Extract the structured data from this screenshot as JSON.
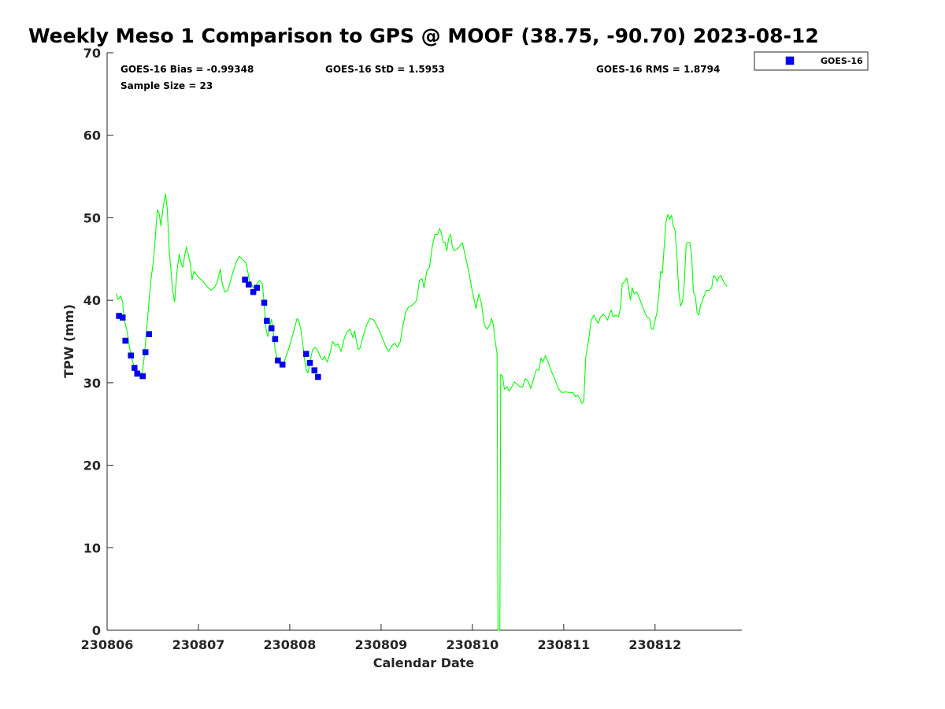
{
  "chart_data": {
    "type": "line",
    "title": "Weekly Meso 1 Comparison to GPS @ MOOF (38.75, -90.70) 2023-08-12",
    "xlabel": "Calendar Date",
    "ylabel": "TPW (mm)",
    "xlim": [
      0,
      6.95
    ],
    "ylim": [
      0,
      70
    ],
    "x_ticks": [
      0,
      1,
      2,
      3,
      4,
      5,
      6
    ],
    "x_tick_labels": [
      "230806",
      "230807",
      "230808",
      "230809",
      "230810",
      "230811",
      "230812"
    ],
    "y_ticks": [
      0,
      10,
      20,
      30,
      40,
      50,
      60,
      70
    ],
    "y_tick_labels": [
      "0",
      "10",
      "20",
      "30",
      "40",
      "50",
      "60",
      "70"
    ],
    "grid": false,
    "legend_position": "top-right (outside plot)",
    "legend": [
      {
        "label": "GOES-16",
        "marker": "square",
        "color": "#0000ff"
      }
    ],
    "stats": {
      "bias": "GOES-16 Bias = -0.99348",
      "std": "GOES-16 StD = 1.5953",
      "rms": "GOES-16 RMS = 1.8794",
      "sample": "Sample Size = 23"
    },
    "series": [
      {
        "kind": "line",
        "color": "#00ff00",
        "points": [
          [
            0.1,
            40.8
          ],
          [
            0.12,
            40.1
          ],
          [
            0.15,
            40.5
          ],
          [
            0.17,
            39.8
          ],
          [
            0.19,
            37.5
          ],
          [
            0.22,
            36.2
          ],
          [
            0.25,
            34.0
          ],
          [
            0.28,
            32.5
          ],
          [
            0.31,
            31.5
          ],
          [
            0.34,
            31.0
          ],
          [
            0.37,
            30.8
          ],
          [
            0.39,
            31.5
          ],
          [
            0.41,
            33.5
          ],
          [
            0.43,
            36.0
          ],
          [
            0.46,
            40.0
          ],
          [
            0.48,
            42.5
          ],
          [
            0.51,
            45.0
          ],
          [
            0.53,
            48.0
          ],
          [
            0.55,
            51.0
          ],
          [
            0.57,
            50.5
          ],
          [
            0.59,
            49.0
          ],
          [
            0.61,
            51.0
          ],
          [
            0.64,
            52.9
          ],
          [
            0.66,
            51.0
          ],
          [
            0.68,
            46.0
          ],
          [
            0.7,
            43.5
          ],
          [
            0.72,
            41.0
          ],
          [
            0.74,
            39.8
          ],
          [
            0.75,
            41.5
          ],
          [
            0.77,
            44.0
          ],
          [
            0.79,
            45.6
          ],
          [
            0.81,
            44.5
          ],
          [
            0.83,
            44.0
          ],
          [
            0.85,
            45.5
          ],
          [
            0.87,
            46.5
          ],
          [
            0.89,
            45.5
          ],
          [
            0.91,
            44.5
          ],
          [
            0.93,
            42.5
          ],
          [
            0.95,
            43.5
          ],
          [
            1.0,
            42.8
          ],
          [
            1.05,
            42.3
          ],
          [
            1.1,
            41.6
          ],
          [
            1.14,
            41.2
          ],
          [
            1.17,
            41.5
          ],
          [
            1.2,
            42.0
          ],
          [
            1.24,
            43.8
          ],
          [
            1.26,
            42.0
          ],
          [
            1.29,
            41.0
          ],
          [
            1.32,
            41.2
          ],
          [
            1.35,
            42.3
          ],
          [
            1.38,
            43.5
          ],
          [
            1.42,
            44.8
          ],
          [
            1.45,
            45.3
          ],
          [
            1.48,
            45.0
          ],
          [
            1.52,
            44.5
          ],
          [
            1.54,
            43.5
          ],
          [
            1.56,
            42.2
          ],
          [
            1.58,
            42.0
          ],
          [
            1.6,
            41.5
          ],
          [
            1.62,
            41.5
          ],
          [
            1.64,
            42.0
          ],
          [
            1.67,
            42.4
          ],
          [
            1.7,
            42.0
          ],
          [
            1.72,
            39.5
          ],
          [
            1.74,
            36.5
          ],
          [
            1.76,
            35.6
          ],
          [
            1.78,
            36.8
          ],
          [
            1.8,
            37.7
          ],
          [
            1.82,
            36.0
          ],
          [
            1.84,
            34.0
          ],
          [
            1.86,
            33.0
          ],
          [
            1.88,
            32.5
          ],
          [
            1.9,
            32.0
          ],
          [
            1.92,
            32.2
          ],
          [
            1.94,
            32.6
          ],
          [
            2.0,
            34.5
          ],
          [
            2.05,
            36.5
          ],
          [
            2.08,
            37.8
          ],
          [
            2.1,
            37.5
          ],
          [
            2.12,
            36.5
          ],
          [
            2.14,
            35.0
          ],
          [
            2.16,
            33.0
          ],
          [
            2.18,
            31.5
          ],
          [
            2.2,
            31.2
          ],
          [
            2.22,
            32.5
          ],
          [
            2.25,
            34.0
          ],
          [
            2.28,
            34.3
          ],
          [
            2.31,
            33.8
          ],
          [
            2.34,
            33.0
          ],
          [
            2.36,
            32.8
          ],
          [
            2.38,
            33.2
          ],
          [
            2.41,
            32.5
          ],
          [
            2.44,
            33.6
          ],
          [
            2.47,
            35.0
          ],
          [
            2.5,
            34.5
          ],
          [
            2.53,
            34.7
          ],
          [
            2.56,
            33.8
          ],
          [
            2.58,
            34.5
          ],
          [
            2.6,
            35.5
          ],
          [
            2.63,
            36.2
          ],
          [
            2.66,
            36.5
          ],
          [
            2.69,
            35.5
          ],
          [
            2.71,
            36.3
          ],
          [
            2.73,
            35.0
          ],
          [
            2.75,
            34.0
          ],
          [
            2.77,
            34.2
          ],
          [
            2.8,
            35.5
          ],
          [
            2.84,
            37.0
          ],
          [
            2.88,
            37.8
          ],
          [
            2.92,
            37.6
          ],
          [
            2.96,
            36.8
          ],
          [
            3.0,
            35.8
          ],
          [
            3.04,
            34.7
          ],
          [
            3.08,
            33.8
          ],
          [
            3.12,
            34.5
          ],
          [
            3.15,
            34.8
          ],
          [
            3.18,
            34.3
          ],
          [
            3.21,
            35.0
          ],
          [
            3.24,
            37.0
          ],
          [
            3.27,
            38.5
          ],
          [
            3.3,
            39.2
          ],
          [
            3.33,
            39.3
          ],
          [
            3.36,
            39.6
          ],
          [
            3.39,
            40.0
          ],
          [
            3.42,
            42.4
          ],
          [
            3.45,
            42.6
          ],
          [
            3.47,
            41.5
          ],
          [
            3.5,
            43.5
          ],
          [
            3.53,
            44.0
          ],
          [
            3.56,
            46.5
          ],
          [
            3.59,
            48.0
          ],
          [
            3.62,
            48.0
          ],
          [
            3.64,
            48.7
          ],
          [
            3.66,
            48.2
          ],
          [
            3.68,
            47.0
          ],
          [
            3.7,
            47.0
          ],
          [
            3.72,
            46.0
          ],
          [
            3.74,
            47.5
          ],
          [
            3.76,
            48.0
          ],
          [
            3.78,
            46.5
          ],
          [
            3.8,
            46.0
          ],
          [
            3.83,
            46.2
          ],
          [
            3.86,
            46.5
          ],
          [
            3.89,
            47.0
          ],
          [
            3.92,
            45.5
          ],
          [
            3.96,
            43.5
          ],
          [
            4.0,
            41.0
          ],
          [
            4.04,
            39.0
          ],
          [
            4.07,
            40.8
          ],
          [
            4.1,
            39.5
          ],
          [
            4.13,
            37.0
          ],
          [
            4.16,
            36.5
          ],
          [
            4.19,
            37.0
          ],
          [
            4.21,
            37.8
          ],
          [
            4.23,
            37.0
          ],
          [
            4.25,
            35.0
          ],
          [
            4.27,
            33.5
          ],
          [
            4.28,
            0.0
          ],
          [
            4.3,
            0.0
          ],
          [
            4.31,
            31.0
          ],
          [
            4.33,
            30.8
          ],
          [
            4.35,
            29.2
          ],
          [
            4.38,
            29.5
          ],
          [
            4.4,
            29.0
          ],
          [
            4.43,
            29.5
          ],
          [
            4.46,
            30.1
          ],
          [
            4.49,
            29.8
          ],
          [
            4.52,
            29.5
          ],
          [
            4.55,
            29.5
          ],
          [
            4.58,
            30.5
          ],
          [
            4.61,
            30.2
          ],
          [
            4.64,
            29.3
          ],
          [
            4.67,
            30.5
          ],
          [
            4.7,
            31.6
          ],
          [
            4.73,
            31.5
          ],
          [
            4.75,
            33.0
          ],
          [
            4.77,
            32.5
          ],
          [
            4.8,
            33.3
          ],
          [
            4.83,
            32.5
          ],
          [
            4.86,
            31.5
          ],
          [
            4.9,
            30.5
          ],
          [
            4.94,
            29.3
          ],
          [
            4.98,
            28.8
          ],
          [
            5.02,
            28.9
          ],
          [
            5.06,
            28.8
          ],
          [
            5.1,
            28.8
          ],
          [
            5.13,
            28.3
          ],
          [
            5.15,
            28.5
          ],
          [
            5.18,
            28.0
          ],
          [
            5.2,
            27.5
          ],
          [
            5.22,
            27.8
          ],
          [
            5.24,
            33.0
          ],
          [
            5.27,
            35.0
          ],
          [
            5.3,
            37.5
          ],
          [
            5.33,
            38.2
          ],
          [
            5.36,
            37.5
          ],
          [
            5.38,
            37.2
          ],
          [
            5.4,
            37.9
          ],
          [
            5.43,
            38.3
          ],
          [
            5.46,
            38.0
          ],
          [
            5.48,
            37.6
          ],
          [
            5.5,
            38.3
          ],
          [
            5.52,
            38.8
          ],
          [
            5.54,
            38.0
          ],
          [
            5.57,
            38.2
          ],
          [
            5.6,
            38.0
          ],
          [
            5.62,
            39.0
          ],
          [
            5.64,
            42.0
          ],
          [
            5.67,
            42.3
          ],
          [
            5.69,
            42.7
          ],
          [
            5.71,
            41.5
          ],
          [
            5.73,
            40.0
          ],
          [
            5.75,
            41.5
          ],
          [
            5.77,
            40.8
          ],
          [
            5.8,
            41.0
          ],
          [
            5.83,
            40.2
          ],
          [
            5.87,
            39.0
          ],
          [
            5.91,
            38.0
          ],
          [
            5.94,
            37.8
          ],
          [
            5.96,
            36.5
          ],
          [
            5.98,
            36.5
          ],
          [
            6.0,
            37.5
          ],
          [
            6.02,
            38.5
          ],
          [
            6.04,
            40.5
          ],
          [
            6.06,
            43.5
          ],
          [
            6.08,
            43.3
          ],
          [
            6.1,
            46.5
          ],
          [
            6.12,
            49.5
          ],
          [
            6.14,
            50.4
          ],
          [
            6.16,
            49.8
          ],
          [
            6.18,
            50.3
          ],
          [
            6.2,
            49.0
          ],
          [
            6.22,
            48.5
          ],
          [
            6.24,
            45.0
          ],
          [
            6.26,
            41.0
          ],
          [
            6.28,
            39.3
          ],
          [
            6.3,
            39.8
          ],
          [
            6.32,
            42.0
          ],
          [
            6.34,
            46.8
          ],
          [
            6.36,
            47.0
          ],
          [
            6.38,
            47.0
          ],
          [
            6.4,
            45.5
          ],
          [
            6.42,
            41.0
          ],
          [
            6.44,
            40.5
          ],
          [
            6.46,
            38.5
          ],
          [
            6.48,
            38.2
          ],
          [
            6.5,
            39.5
          ],
          [
            6.53,
            40.3
          ],
          [
            6.56,
            41.2
          ],
          [
            6.59,
            41.2
          ],
          [
            6.62,
            41.5
          ],
          [
            6.64,
            43.0
          ],
          [
            6.66,
            42.8
          ],
          [
            6.68,
            42.3
          ],
          [
            6.7,
            42.8
          ],
          [
            6.72,
            43.0
          ],
          [
            6.74,
            42.5
          ],
          [
            6.76,
            42.0
          ],
          [
            6.78,
            41.8
          ],
          [
            6.79,
            41.7
          ]
        ]
      },
      {
        "name": "GOES-16",
        "kind": "scatter",
        "color": "#0000ff",
        "points": [
          [
            0.13,
            38.1
          ],
          [
            0.17,
            37.9
          ],
          [
            0.2,
            35.1
          ],
          [
            0.26,
            33.3
          ],
          [
            0.3,
            31.8
          ],
          [
            0.33,
            31.1
          ],
          [
            0.39,
            30.8
          ],
          [
            0.42,
            33.7
          ],
          [
            0.46,
            35.9
          ],
          [
            1.51,
            42.5
          ],
          [
            1.55,
            41.9
          ],
          [
            1.6,
            41.0
          ],
          [
            1.64,
            41.5
          ],
          [
            1.72,
            39.7
          ],
          [
            1.75,
            37.5
          ],
          [
            1.8,
            36.6
          ],
          [
            1.84,
            35.3
          ],
          [
            1.87,
            32.7
          ],
          [
            1.92,
            32.2
          ],
          [
            2.18,
            33.5
          ],
          [
            2.22,
            32.4
          ],
          [
            2.27,
            31.5
          ],
          [
            2.31,
            30.7
          ]
        ]
      }
    ]
  }
}
